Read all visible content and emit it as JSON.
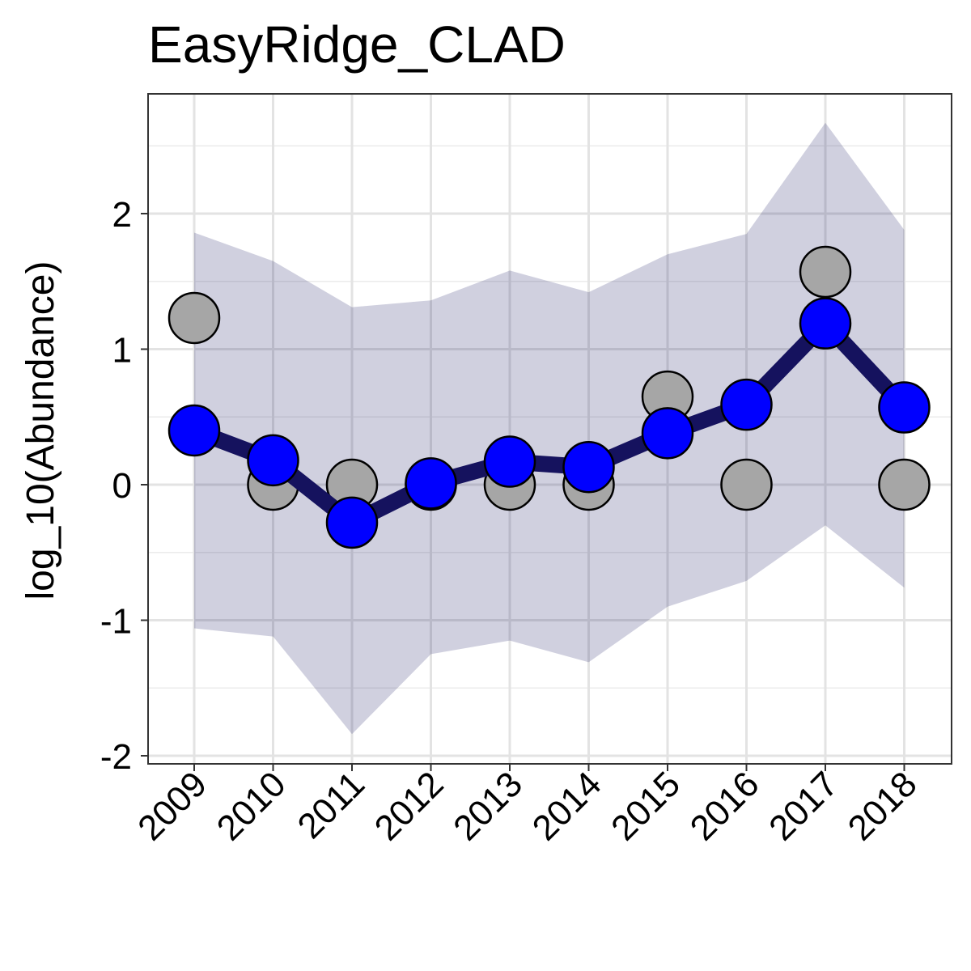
{
  "chart_data": {
    "type": "line",
    "title": "EasyRidge_CLAD",
    "xlabel": "",
    "ylabel": "log_10(Abundance)",
    "categories": [
      "2009",
      "2010",
      "2011",
      "2012",
      "2013",
      "2014",
      "2015",
      "2016",
      "2017",
      "2018"
    ],
    "y_ticks": [
      "-2",
      "-1",
      "0",
      "1",
      "2"
    ],
    "ylim": [
      -2.05,
      2.9
    ],
    "grid": true,
    "legend": "none",
    "ribbon": {
      "upper": [
        1.86,
        1.65,
        1.31,
        1.36,
        1.58,
        1.42,
        1.7,
        1.85,
        2.67,
        1.88
      ],
      "lower": [
        -1.06,
        -1.12,
        -1.84,
        -1.25,
        -1.15,
        -1.31,
        -0.9,
        -0.71,
        -0.3,
        -0.76
      ],
      "color": "#15125e"
    },
    "series": [
      {
        "values": [
          0.4,
          0.18,
          -0.28,
          0.01,
          0.17,
          0.13,
          0.38,
          0.59,
          1.19,
          0.57
        ],
        "line_color": "#15125e",
        "marker_color": "#0000ff"
      }
    ],
    "observed": {
      "values": [
        1.23,
        0.0,
        0.0,
        0.0,
        0.0,
        0.0,
        0.65,
        0.0,
        1.57,
        0.0
      ],
      "marker_color": "#a6a6a6"
    }
  }
}
